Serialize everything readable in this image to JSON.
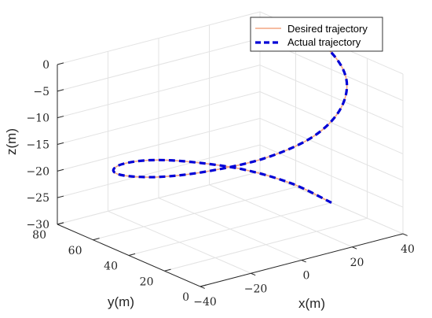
{
  "chart_data": {
    "type": "line",
    "projection": "3d",
    "title": "",
    "xlabel": "x(m)",
    "ylabel": "y(m)",
    "zlabel": "z(m)",
    "xlim": [
      -40,
      40
    ],
    "ylim": [
      0,
      80
    ],
    "zlim": [
      -30,
      0
    ],
    "x_ticks": [
      "−40",
      "−20",
      "0",
      "20",
      "40"
    ],
    "y_ticks": [
      "0",
      "20",
      "40",
      "60",
      "80"
    ],
    "z_ticks": [
      "0",
      "−5",
      "−10",
      "−15",
      "−20",
      "−25",
      "−30"
    ],
    "grid": true,
    "legend_position": "top-right",
    "series": [
      {
        "name": "Desired trajectory",
        "color": "#f4a582",
        "style": "solid",
        "points": [
          [
            40,
            40,
            -30
          ],
          [
            35,
            55,
            -28
          ],
          [
            25,
            68,
            -26
          ],
          [
            10,
            77,
            -24
          ],
          [
            -5,
            78,
            -22
          ],
          [
            -20,
            72,
            -20
          ],
          [
            -32,
            60,
            -18
          ],
          [
            -38,
            45,
            -16
          ],
          [
            -36,
            28,
            -14
          ],
          [
            -27,
            14,
            -12
          ],
          [
            -12,
            4,
            -10
          ],
          [
            5,
            2,
            -8
          ],
          [
            20,
            8,
            -6
          ],
          [
            32,
            20,
            -4
          ],
          [
            38,
            34,
            -2
          ],
          [
            38,
            48,
            0
          ],
          [
            33,
            58,
            -1
          ]
        ]
      },
      {
        "name": "Actual trajectory",
        "color": "#0000d6",
        "style": "dashed",
        "points": [
          [
            40,
            40,
            -30
          ],
          [
            35,
            55,
            -28
          ],
          [
            25,
            68,
            -26
          ],
          [
            10,
            77,
            -24
          ],
          [
            -5,
            78,
            -22
          ],
          [
            -20,
            72,
            -20
          ],
          [
            -32,
            60,
            -18
          ],
          [
            -38,
            45,
            -16
          ],
          [
            -36,
            28,
            -14
          ],
          [
            -27,
            14,
            -12
          ],
          [
            -12,
            4,
            -10
          ],
          [
            5,
            2,
            -8
          ],
          [
            20,
            8,
            -6
          ],
          [
            32,
            20,
            -4
          ],
          [
            38,
            34,
            -2
          ],
          [
            38,
            48,
            0
          ],
          [
            33,
            58,
            -1
          ]
        ]
      }
    ]
  }
}
